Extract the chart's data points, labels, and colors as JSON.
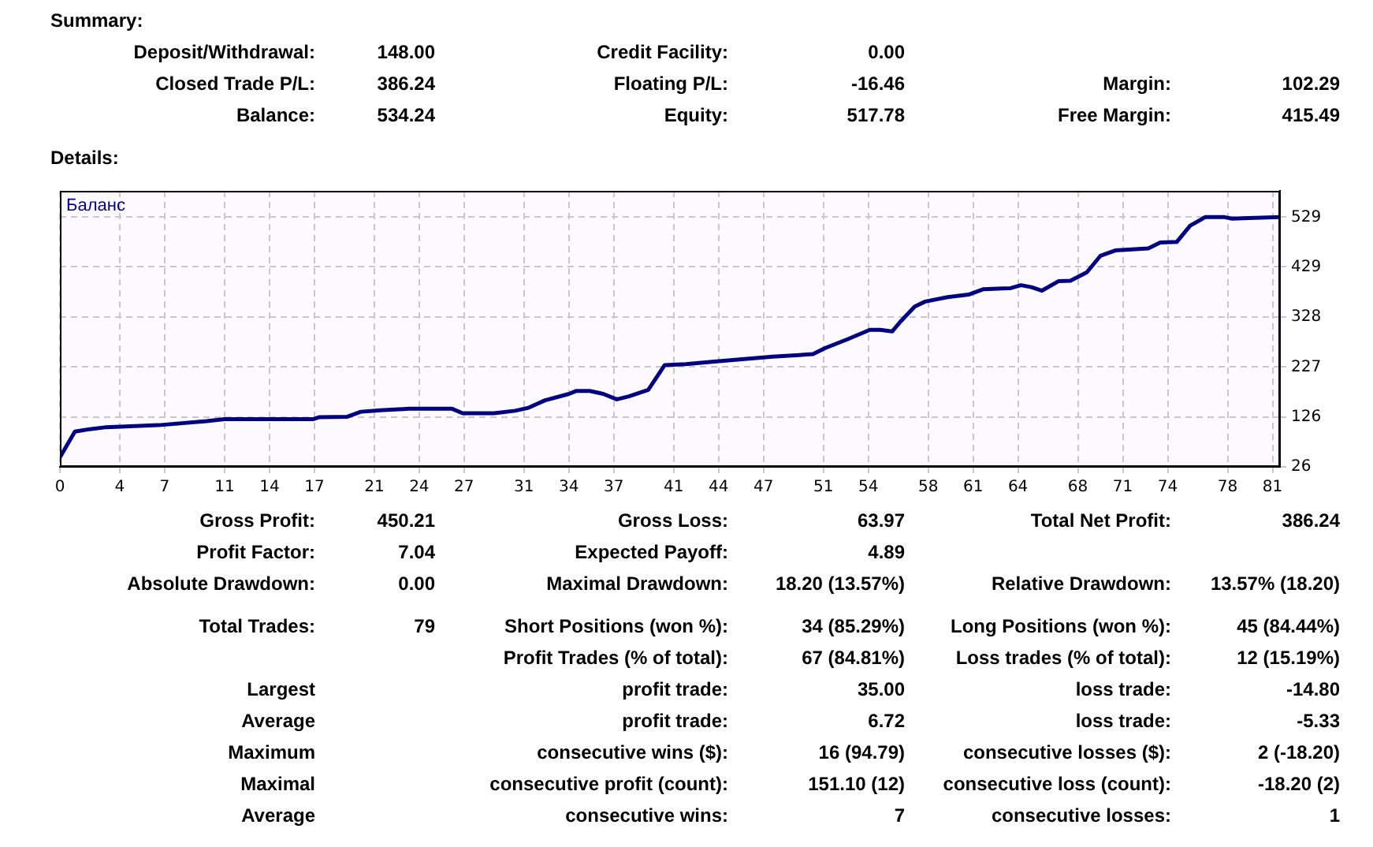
{
  "chart_data": {
    "type": "line",
    "x": [
      0,
      1,
      2,
      3.1,
      6.6,
      9.8,
      11,
      16.9,
      17.3,
      19.2,
      20.1,
      21.4,
      23.3,
      26.2,
      26.9,
      29,
      30.4,
      31.3,
      32.4,
      34,
      34.5,
      35.4,
      36.3,
      37.2,
      38,
      39.3,
      40.4,
      41.8,
      43.7,
      47.6,
      50.3,
      51.1,
      52.6,
      54.1,
      54.8,
      55.6,
      56.1,
      57.1,
      57.8,
      59.3,
      60.7,
      61.7,
      63.5,
      64.2,
      64.9,
      65.6,
      66.7,
      67.5,
      68.6,
      69.5,
      70.5,
      72.7,
      73.5,
      74.6,
      75.5,
      76.5,
      77.8,
      78.3,
      79.4,
      81.5
    ],
    "series": [
      {
        "name": "Баланс",
        "color": "#000080",
        "values": [
          45,
          97,
          102,
          106,
          110,
          118,
          122,
          122,
          126,
          127,
          137,
          140,
          143,
          143,
          134,
          134,
          139,
          145,
          160,
          173,
          179,
          179,
          173,
          162,
          168,
          181,
          231,
          233,
          238,
          248,
          253,
          265,
          283,
          302,
          302,
          299,
          317,
          349,
          359,
          368,
          373,
          384,
          386,
          392,
          388,
          381,
          400,
          401,
          418,
          451,
          462,
          466,
          478,
          479,
          512,
          529,
          529,
          526,
          527,
          529
        ]
      }
    ],
    "xlim": [
      0,
      81.5
    ],
    "xticks": [
      0,
      4,
      7,
      11,
      14,
      17,
      21,
      24,
      27,
      31,
      34,
      37,
      41,
      44,
      47,
      51,
      54,
      58,
      61,
      64,
      68,
      71,
      74,
      78,
      81
    ],
    "ylim": [
      26,
      582
    ],
    "yticks": [
      26,
      126,
      227,
      328,
      429,
      529
    ],
    "grid": true,
    "legend": "top left",
    "marker": "none",
    "line_style": "solid",
    "annotations": [
      "Summary:",
      "Deposit/Withdrawal:",
      "148.00",
      "Credit Facility:",
      "0.00",
      "Closed Trade P/L:",
      "386.24",
      "Floating P/L:",
      "-16.46",
      "Margin:",
      "102.29",
      "Balance:",
      "534.24",
      "Equity:",
      "517.78",
      "Free Margin:",
      "415.49",
      "Details:",
      "Gross Profit:",
      "450.21",
      "Gross Loss:",
      "63.97",
      "Total Net Profit:",
      "386.24",
      "Profit Factor:",
      "7.04",
      "Expected Payoff:",
      "4.89",
      "Absolute Drawdown:",
      "0.00",
      "Maximal Drawdown:",
      "18.20 (13.57%)",
      "Relative Drawdown:",
      "13.57% (18.20)",
      "Total Trades:",
      "79",
      "Short Positions (won %):",
      "34 (85.29%)",
      "Long Positions (won %):",
      "45 (84.44%)",
      "Profit Trades (% of total):",
      "67 (84.81%)",
      "Loss trades (% of total):",
      "12 (15.19%)",
      "Largest",
      "profit trade:",
      "35.00",
      "loss trade:",
      "-14.80",
      "Average",
      "profit trade:",
      "6.72",
      "loss trade:",
      "-5.33",
      "Maximum",
      "consecutive wins ($):",
      "16 (94.79)",
      "consecutive losses ($):",
      "2 (-18.20)",
      "Maximal",
      "consecutive profit (count):",
      "151.10 (12)",
      "consecutive loss (count):",
      "-18.20 (2)",
      "Average",
      "consecutive wins:",
      "7",
      "consecutive losses:",
      "1"
    ]
  }
}
